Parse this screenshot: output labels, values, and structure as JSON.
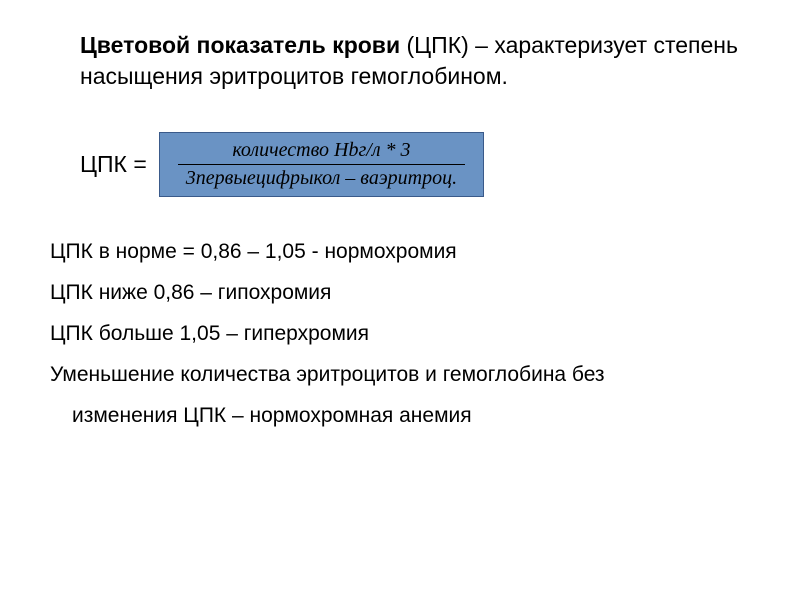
{
  "title": {
    "bold_part": "Цветовой показатель крови",
    "abbr": " (ЦПК) – ",
    "rest": "характеризует степень насыщения эритроцитов гемоглобином."
  },
  "formula": {
    "label": "ЦПК = ",
    "numerator": "количество Hbг/л * 3",
    "denominator": "3первыецифрыкол – ваэритроц."
  },
  "info_lines": {
    "line1": "ЦПК в норме = 0,86 – 1,05 - нормохромия",
    "line2": "ЦПК ниже 0,86 – гипохромия",
    "line3": "ЦПК больше 1,05 – гиперхромия",
    "line4": "Уменьшение количества эритроцитов и гемоглобина без",
    "line5": "изменения ЦПК – нормохромная анемия"
  },
  "colors": {
    "formula_bg": "#6a93c4",
    "formula_border": "#3a5a8a",
    "page_bg": "#ffffff",
    "text": "#000000"
  }
}
